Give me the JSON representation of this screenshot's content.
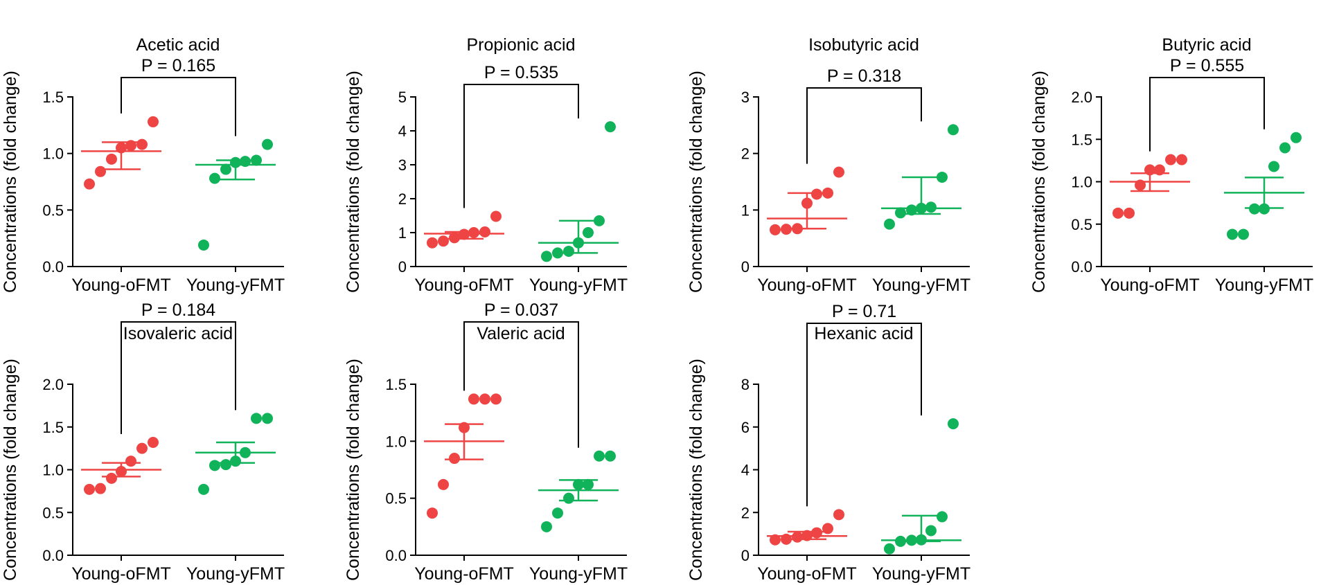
{
  "figure": {
    "group_colors": [
      "#ef4444",
      "#10b35a"
    ]
  },
  "chart_data": [
    {
      "type": "scatter",
      "title": "Acetic acid",
      "ylabel": "Concentrations (fold change)",
      "categories": [
        "Young-oFMT",
        "Young-yFMT"
      ],
      "ylim": [
        0,
        1.5
      ],
      "yticks": [
        0.0,
        0.5,
        1.0,
        1.5
      ],
      "ytick_labels": [
        "0.0",
        "0.5",
        "1.0",
        "1.5"
      ],
      "p_label": "P = 0.165",
      "series": [
        {
          "name": "Young-oFMT",
          "color": "#ef4444",
          "values": [
            0.73,
            0.84,
            0.95,
            1.05,
            1.07,
            1.08,
            1.28
          ],
          "mean": 1.02,
          "sem_low": 0.86,
          "sem_high": 1.1
        },
        {
          "name": "Young-yFMT",
          "color": "#10b35a",
          "values": [
            0.19,
            0.78,
            0.86,
            0.92,
            0.93,
            0.94,
            1.08
          ],
          "mean": 0.9,
          "sem_low": 0.77,
          "sem_high": 0.94
        }
      ]
    },
    {
      "type": "scatter",
      "title": "Propionic acid",
      "ylabel": "Concentrations (fold change)",
      "categories": [
        "Young-oFMT",
        "Young-yFMT"
      ],
      "ylim": [
        0,
        5
      ],
      "yticks": [
        0,
        1,
        2,
        3,
        4,
        5
      ],
      "ytick_labels": [
        "0",
        "1",
        "2",
        "3",
        "4",
        "5"
      ],
      "p_label": "P = 0.535",
      "series": [
        {
          "name": "Young-oFMT",
          "color": "#ef4444",
          "values": [
            0.7,
            0.75,
            0.85,
            0.95,
            1.0,
            1.02,
            1.48
          ],
          "mean": 0.97,
          "sem_low": 0.82,
          "sem_high": 1.02
        },
        {
          "name": "Young-yFMT",
          "color": "#10b35a",
          "values": [
            0.3,
            0.4,
            0.45,
            0.7,
            1.0,
            1.35,
            4.12
          ],
          "mean": 0.7,
          "sem_low": 0.4,
          "sem_high": 1.35
        }
      ]
    },
    {
      "type": "scatter",
      "title": "Isobutyric acid",
      "ylabel": "Concentrations (fold change)",
      "categories": [
        "Young-oFMT",
        "Young-yFMT"
      ],
      "ylim": [
        0,
        3
      ],
      "yticks": [
        0,
        1,
        2,
        3
      ],
      "ytick_labels": [
        "0",
        "1",
        "2",
        "3"
      ],
      "p_label": "P = 0.318",
      "series": [
        {
          "name": "Young-oFMT",
          "color": "#ef4444",
          "values": [
            0.65,
            0.66,
            0.67,
            1.12,
            1.28,
            1.3,
            1.67
          ],
          "mean": 0.85,
          "sem_low": 0.67,
          "sem_high": 1.3
        },
        {
          "name": "Young-yFMT",
          "color": "#10b35a",
          "values": [
            0.75,
            0.95,
            1.0,
            1.03,
            1.05,
            1.58,
            2.42
          ],
          "mean": 1.03,
          "sem_low": 0.93,
          "sem_high": 1.58
        }
      ]
    },
    {
      "type": "scatter",
      "title": "Butyric acid",
      "ylabel": "Concentrations (fold change)",
      "categories": [
        "Young-oFMT",
        "Young-yFMT"
      ],
      "ylim": [
        0,
        2.0
      ],
      "yticks": [
        0.0,
        0.5,
        1.0,
        1.5,
        2.0
      ],
      "ytick_labels": [
        "0.0",
        "0.5",
        "1.0",
        "1.5",
        "2.0"
      ],
      "p_label": "P = 0.555",
      "series": [
        {
          "name": "Young-oFMT",
          "color": "#ef4444",
          "values": [
            0.63,
            0.63,
            0.96,
            1.14,
            1.14,
            1.26,
            1.26
          ],
          "mean": 1.0,
          "sem_low": 0.89,
          "sem_high": 1.1
        },
        {
          "name": "Young-yFMT",
          "color": "#10b35a",
          "values": [
            0.38,
            0.38,
            0.68,
            0.68,
            1.18,
            1.4,
            1.52
          ],
          "mean": 0.87,
          "sem_low": 0.69,
          "sem_high": 1.05
        }
      ]
    },
    {
      "type": "scatter",
      "title": "Isovaleric acid",
      "ylabel": "Concentrations (fold change)",
      "categories": [
        "Young-oFMT",
        "Young-yFMT"
      ],
      "ylim": [
        0,
        2.0
      ],
      "yticks": [
        0.0,
        0.5,
        1.0,
        1.5,
        2.0
      ],
      "ytick_labels": [
        "0.0",
        "0.5",
        "1.0",
        "1.5",
        "2.0"
      ],
      "p_label": "P = 0.184",
      "series": [
        {
          "name": "Young-oFMT",
          "color": "#ef4444",
          "values": [
            0.77,
            0.78,
            0.9,
            0.98,
            1.1,
            1.25,
            1.32
          ],
          "mean": 1.0,
          "sem_low": 0.92,
          "sem_high": 1.08
        },
        {
          "name": "Young-yFMT",
          "color": "#10b35a",
          "values": [
            0.77,
            1.05,
            1.06,
            1.1,
            1.2,
            1.6,
            1.6
          ],
          "mean": 1.2,
          "sem_low": 1.08,
          "sem_high": 1.32
        }
      ]
    },
    {
      "type": "scatter",
      "title": "Valeric acid",
      "ylabel": "Concentrations (fold change)",
      "categories": [
        "Young-oFMT",
        "Young-yFMT"
      ],
      "ylim": [
        0,
        1.5
      ],
      "yticks": [
        0.0,
        0.5,
        1.0,
        1.5
      ],
      "ytick_labels": [
        "0.0",
        "0.5",
        "1.0",
        "1.5"
      ],
      "p_label": "P = 0.037",
      "series": [
        {
          "name": "Young-oFMT",
          "color": "#ef4444",
          "values": [
            0.37,
            0.62,
            0.85,
            1.12,
            1.37,
            1.37,
            1.37
          ],
          "mean": 1.0,
          "sem_low": 0.84,
          "sem_high": 1.15
        },
        {
          "name": "Young-yFMT",
          "color": "#10b35a",
          "values": [
            0.25,
            0.37,
            0.5,
            0.62,
            0.62,
            0.87,
            0.87
          ],
          "mean": 0.57,
          "sem_low": 0.48,
          "sem_high": 0.66
        }
      ]
    },
    {
      "type": "scatter",
      "title": "Hexanic acid",
      "ylabel": "Concentrations (fold change)",
      "categories": [
        "Young-oFMT",
        "Young-yFMT"
      ],
      "ylim": [
        0,
        8
      ],
      "yticks": [
        0,
        2,
        4,
        6,
        8
      ],
      "ytick_labels": [
        "0",
        "2",
        "4",
        "6",
        "8"
      ],
      "p_label": "P = 0.71",
      "series": [
        {
          "name": "Young-oFMT",
          "color": "#ef4444",
          "values": [
            0.72,
            0.75,
            0.85,
            0.92,
            1.05,
            1.25,
            1.9
          ],
          "mean": 0.9,
          "sem_low": 0.75,
          "sem_high": 1.1
        },
        {
          "name": "Young-yFMT",
          "color": "#10b35a",
          "values": [
            0.3,
            0.65,
            0.7,
            0.72,
            1.15,
            1.8,
            6.15
          ],
          "mean": 0.7,
          "sem_low": 0.65,
          "sem_high": 1.85
        }
      ]
    }
  ]
}
